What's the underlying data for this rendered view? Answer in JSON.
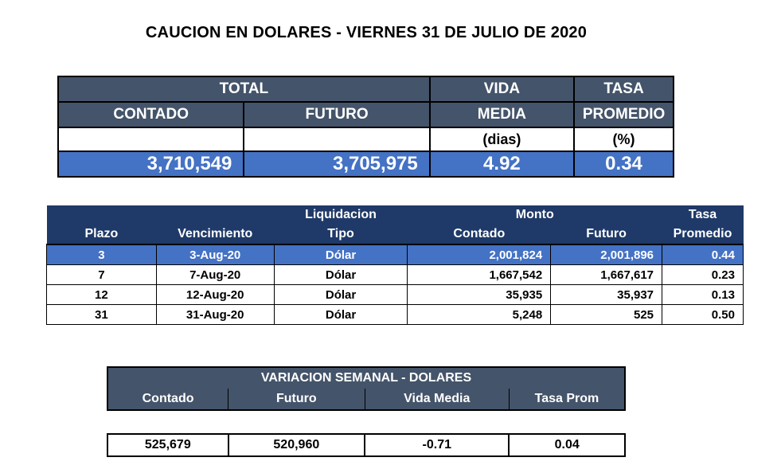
{
  "title": "CAUCION EN DOLARES - VIERNES 31 DE JULIO DE 2020",
  "summary": {
    "total_label": "TOTAL",
    "contado_label": "CONTADO",
    "futuro_label": "FUTURO",
    "vida_label_1": "VIDA",
    "vida_label_2": "MEDIA",
    "tasa_label_1": "TASA",
    "tasa_label_2": "PROMEDIO",
    "vida_unit": "(dias)",
    "tasa_unit": "(%)",
    "contado": "3,710,549",
    "futuro": "3,705,975",
    "vida_media": "4.92",
    "tasa_promedio": "0.34"
  },
  "detail": {
    "headers": {
      "liquidacion": "Liquidacion",
      "monto": "Monto",
      "tasa": "Tasa",
      "plazo": "Plazo",
      "vencimiento": "Vencimiento",
      "tipo": "Tipo",
      "contado": "Contado",
      "futuro": "Futuro",
      "promedio": "Promedio"
    },
    "rows": [
      {
        "plazo": "3",
        "vencimiento": "3-Aug-20",
        "tipo": "Dólar",
        "contado": "2,001,824",
        "futuro": "2,001,896",
        "tasa": "0.44"
      },
      {
        "plazo": "7",
        "vencimiento": "7-Aug-20",
        "tipo": "Dólar",
        "contado": "1,667,542",
        "futuro": "1,667,617",
        "tasa": "0.23"
      },
      {
        "plazo": "12",
        "vencimiento": "12-Aug-20",
        "tipo": "Dólar",
        "contado": "35,935",
        "futuro": "35,937",
        "tasa": "0.13"
      },
      {
        "plazo": "31",
        "vencimiento": "31-Aug-20",
        "tipo": "Dólar",
        "contado": "5,248",
        "futuro": "525",
        "tasa": "0.50"
      }
    ]
  },
  "weekly": {
    "title": "VARIACION SEMANAL - DOLARES",
    "headers": {
      "contado": "Contado",
      "futuro": "Futuro",
      "vida_media": "Vida Media",
      "tasa_prom": "Tasa Prom"
    },
    "values": {
      "contado": "525,679",
      "futuro": "520,960",
      "vida_media": "-0.71",
      "tasa_prom": "0.04"
    }
  },
  "colors": {
    "header_slate": "#44546a",
    "header_navy": "#1f3a68",
    "highlight_blue": "#4472c4"
  }
}
